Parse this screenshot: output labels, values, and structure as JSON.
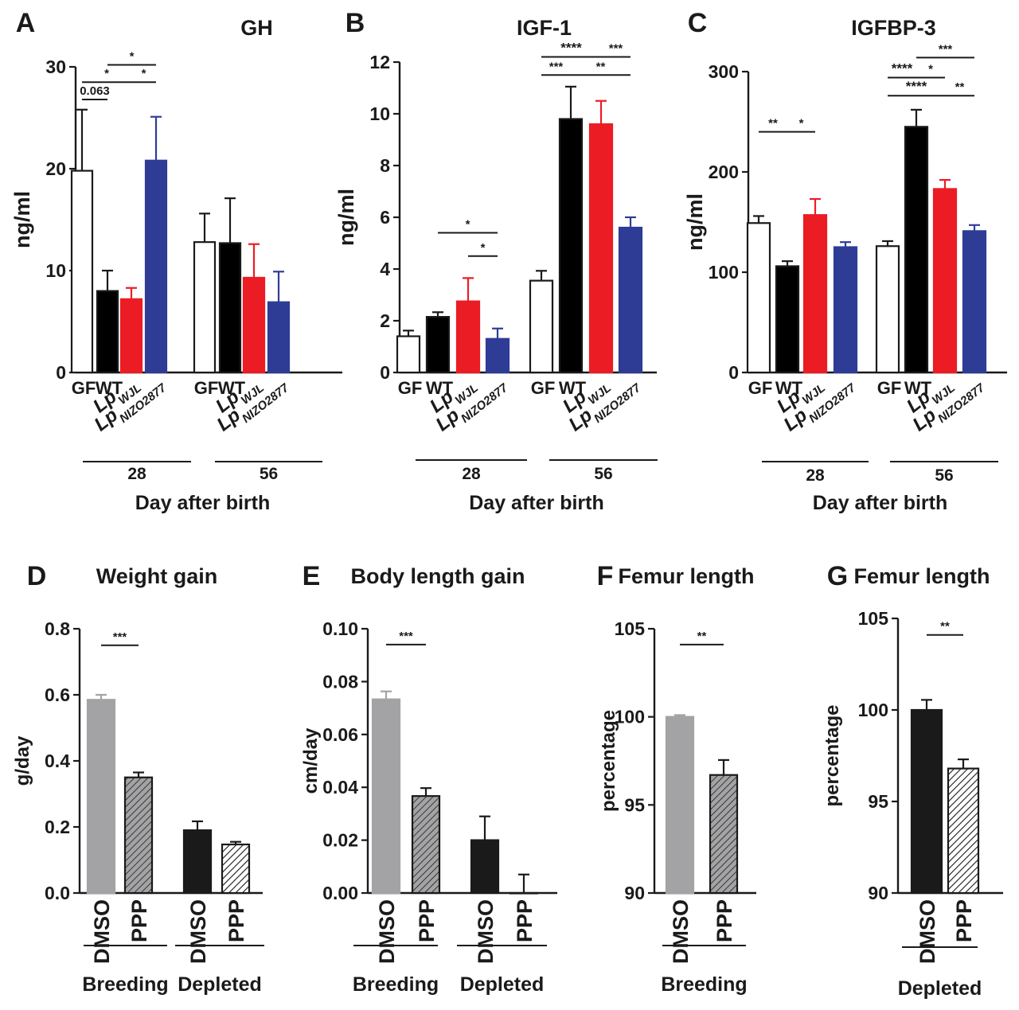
{
  "colors": {
    "GF": "#ffffff",
    "WT": "#000000",
    "LpWJL": "#ec1c24",
    "LpNIZO2877": "#2e3c96",
    "DMSO_breeding": "#a3a3a5",
    "PPP_breeding": "#a3a3a5",
    "DMSO_depleted": "#1a1a1a",
    "PPP_depleted": "#ffffff",
    "axis": "#1a1a1a"
  },
  "chart_data": [
    {
      "panel": "A",
      "type": "bar",
      "title": "GH",
      "ylabel": "ng/ml",
      "ylim": [
        0,
        30
      ],
      "yticks": [
        "0",
        "10",
        "20",
        "30"
      ],
      "xlabel": "Day after birth",
      "groups": [
        "28",
        "56"
      ],
      "categories": [
        {
          "main": "GF",
          "sub": ""
        },
        {
          "main": "WT",
          "sub": ""
        },
        {
          "main": "Lp",
          "sub": "WJL"
        },
        {
          "main": "Lp",
          "sub": "NIZO2877"
        }
      ],
      "series": [
        {
          "group": "28",
          "values": [
            19.8,
            8.0,
            7.2,
            20.8
          ],
          "errors": [
            6.0,
            2.0,
            1.1,
            4.3
          ]
        },
        {
          "group": "56",
          "values": [
            12.8,
            12.7,
            9.3,
            6.9
          ],
          "errors": [
            2.8,
            4.4,
            3.3,
            3.0
          ]
        }
      ],
      "significance": [
        {
          "label": "0.063",
          "group": "28",
          "from": 0,
          "to": 1,
          "y": 26.8
        },
        {
          "label": "*",
          "group": "28",
          "from": 0,
          "to": 2,
          "y": 28.5
        },
        {
          "label": "*",
          "group": "28",
          "from": 2,
          "to": 3,
          "y": 28.5
        },
        {
          "label": "*",
          "group": "28",
          "from": 1,
          "to": 3,
          "y": 30.2
        }
      ]
    },
    {
      "panel": "B",
      "type": "bar",
      "title": "IGF-1",
      "ylabel": "ng/ml",
      "ylim": [
        0,
        12
      ],
      "yticks": [
        "0",
        "2",
        "4",
        "6",
        "8",
        "10",
        "12"
      ],
      "xlabel": "Day after birth",
      "groups": [
        "28",
        "56"
      ],
      "categories": [
        {
          "main": "GF",
          "sub": ""
        },
        {
          "main": "WT",
          "sub": ""
        },
        {
          "main": "Lp",
          "sub": "WJL"
        },
        {
          "main": "Lp",
          "sub": "NIZO2877"
        }
      ],
      "series": [
        {
          "group": "28",
          "values": [
            1.4,
            2.15,
            2.75,
            1.3
          ],
          "errors": [
            0.22,
            0.18,
            0.9,
            0.4
          ]
        },
        {
          "group": "56",
          "values": [
            3.55,
            9.8,
            9.6,
            5.6
          ],
          "errors": [
            0.38,
            1.25,
            0.9,
            0.4
          ]
        }
      ],
      "significance": [
        {
          "label": "*",
          "group": "28",
          "from": 1,
          "to": 3,
          "y": 5.4
        },
        {
          "label": "*",
          "group": "28",
          "from": 2,
          "to": 3,
          "y": 4.5
        },
        {
          "label": "****",
          "group": "56",
          "from": 0,
          "to": 2,
          "y": 12.2
        },
        {
          "label": "***",
          "group": "56",
          "from": 2,
          "to": 3,
          "y": 12.2
        },
        {
          "label": "***",
          "group": "56",
          "from": 0,
          "to": 1,
          "y": 11.5
        },
        {
          "label": "**",
          "group": "56",
          "from": 1,
          "to": 3,
          "y": 11.5
        }
      ]
    },
    {
      "panel": "C",
      "type": "bar",
      "title": "IGFBP-3",
      "ylabel": "ng/ml",
      "ylim": [
        0,
        300
      ],
      "yticks": [
        "0",
        "100",
        "200",
        "300"
      ],
      "xlabel": "Day after birth",
      "groups": [
        "28",
        "56"
      ],
      "categories": [
        {
          "main": "GF",
          "sub": ""
        },
        {
          "main": "WT",
          "sub": ""
        },
        {
          "main": "Lp",
          "sub": "WJL"
        },
        {
          "main": "Lp",
          "sub": "NIZO2877"
        }
      ],
      "series": [
        {
          "group": "28",
          "values": [
            149,
            106,
            157,
            125
          ],
          "errors": [
            7,
            5,
            16,
            5
          ]
        },
        {
          "group": "56",
          "values": [
            126,
            245,
            183,
            141
          ],
          "errors": [
            5,
            17,
            9,
            6
          ]
        }
      ],
      "significance": [
        {
          "label": "**",
          "group": "28",
          "from": 0,
          "to": 1,
          "y": 240
        },
        {
          "label": "*",
          "group": "28",
          "from": 1,
          "to": 2,
          "y": 240
        },
        {
          "label": "****",
          "group": "56",
          "from": 0,
          "to": 1,
          "y": 294
        },
        {
          "label": "*",
          "group": "56",
          "from": 1,
          "to": 2,
          "y": 294
        },
        {
          "label": "***",
          "group": "56",
          "from": 1,
          "to": 3,
          "y": 314
        },
        {
          "label": "****",
          "group": "56",
          "from": 0,
          "to": 2,
          "y": 276
        },
        {
          "label": "**",
          "group": "56",
          "from": 2,
          "to": 3,
          "y": 276
        }
      ]
    },
    {
      "panel": "D",
      "type": "bar",
      "title": "Weight gain",
      "ylabel": "g/day",
      "ylim": [
        0,
        0.8
      ],
      "yticks": [
        "0.0",
        "0.2",
        "0.4",
        "0.6",
        "0.8"
      ],
      "groups": [
        "Breeding",
        "Depleted"
      ],
      "series": [
        {
          "group": "Breeding",
          "categories": [
            "DMSO",
            "PPP"
          ],
          "values": [
            0.585,
            0.35
          ],
          "errors": [
            0.015,
            0.015
          ]
        },
        {
          "group": "Depleted",
          "categories": [
            "DMSO",
            "PPP"
          ],
          "values": [
            0.19,
            0.147
          ],
          "errors": [
            0.027,
            0.008
          ]
        }
      ],
      "significance": [
        {
          "label": "***",
          "group": "Breeding",
          "from": 0,
          "to": 1,
          "y": 0.75
        }
      ]
    },
    {
      "panel": "E",
      "type": "bar",
      "title": "Body length gain",
      "ylabel": "cm/day",
      "ylim": [
        0,
        0.1
      ],
      "yticks": [
        "0.00",
        "0.02",
        "0.04",
        "0.06",
        "0.08",
        "0.10"
      ],
      "groups": [
        "Breeding",
        "Depleted"
      ],
      "series": [
        {
          "group": "Breeding",
          "categories": [
            "DMSO",
            "PPP"
          ],
          "values": [
            0.0733,
            0.0367
          ],
          "errors": [
            0.003,
            0.003
          ]
        },
        {
          "group": "Depleted",
          "categories": [
            "DMSO",
            "PPP"
          ],
          "values": [
            0.02,
            0.0
          ],
          "errors": [
            0.009,
            0.007
          ]
        }
      ],
      "significance": [
        {
          "label": "***",
          "group": "Breeding",
          "from": 0,
          "to": 1,
          "y": 0.094
        }
      ]
    },
    {
      "panel": "F",
      "type": "bar",
      "title": "Femur length",
      "ylabel": "percentage",
      "ylim": [
        90,
        105
      ],
      "yticks": [
        "90",
        "95",
        "100",
        "105"
      ],
      "groups": [
        "Breeding"
      ],
      "series": [
        {
          "group": "Breeding",
          "categories": [
            "DMSO",
            "PPP"
          ],
          "values": [
            100.0,
            96.7
          ],
          "errors": [
            0.1,
            0.85
          ]
        }
      ],
      "significance": [
        {
          "label": "**",
          "group": "Breeding",
          "from": 0,
          "to": 1,
          "y": 104.1
        }
      ]
    },
    {
      "panel": "G",
      "type": "bar",
      "title": "Femur length",
      "ylabel": "percentage",
      "ylim": [
        90,
        105
      ],
      "yticks": [
        "90",
        "95",
        "100",
        "105"
      ],
      "groups": [
        "Depleted"
      ],
      "series": [
        {
          "group": "Depleted",
          "categories": [
            "DMSO",
            "PPP"
          ],
          "values": [
            100.0,
            96.8
          ],
          "errors": [
            0.55,
            0.5
          ]
        }
      ],
      "significance": [
        {
          "label": "**",
          "group": "Depleted",
          "from": 0,
          "to": 1,
          "y": 104.1
        }
      ]
    }
  ]
}
